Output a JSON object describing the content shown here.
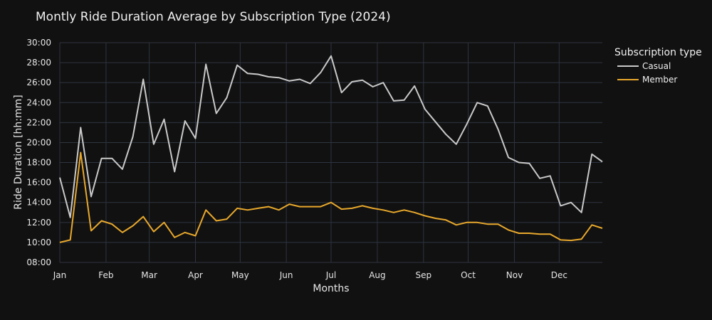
{
  "chart_data": {
    "type": "line",
    "title": "Montly Ride Duration Average by Subscription Type (2024)",
    "xlabel": "Months",
    "ylabel": "Ride Duration [hh:mm]",
    "x_ticks": [
      "Jan",
      "Feb",
      "Mar",
      "Apr",
      "May",
      "Jun",
      "Jul",
      "Aug",
      "Sep",
      "Oct",
      "Nov",
      "Dec"
    ],
    "y_ticks": [
      "08:00",
      "10:00",
      "12:00",
      "14:00",
      "16:00",
      "18:00",
      "20:00",
      "22:00",
      "24:00",
      "26:00",
      "28:00",
      "30:00"
    ],
    "ylim_minutes": [
      480,
      1800
    ],
    "xlim_weeks": [
      0,
      52
    ],
    "grid": true,
    "legend": {
      "title": "Subscription type",
      "placement": "right"
    },
    "x": [
      0,
      1,
      2,
      3,
      4,
      5,
      6,
      7,
      8,
      9,
      10,
      11,
      12,
      13,
      14,
      15,
      16,
      17,
      18,
      19,
      20,
      21,
      22,
      23,
      24,
      25,
      26,
      27,
      28,
      29,
      30,
      31,
      32,
      33,
      34,
      35,
      36,
      37,
      38,
      39,
      40,
      41,
      42,
      43,
      44,
      45,
      46,
      47,
      48,
      49,
      50,
      51,
      52
    ],
    "series": [
      {
        "name": "Casual",
        "color": "#c9c9c9",
        "values": [
          990,
          750,
          1290,
          875,
          1105,
          1105,
          1040,
          1235,
          1580,
          1190,
          1340,
          1025,
          1330,
          1225,
          1670,
          1375,
          1470,
          1665,
          1615,
          1610,
          1595,
          1590,
          1570,
          1580,
          1555,
          1620,
          1720,
          1500,
          1565,
          1575,
          1535,
          1560,
          1450,
          1455,
          1540,
          1400,
          1325,
          1250,
          1190,
          1310,
          1440,
          1420,
          1280,
          1110,
          1080,
          1075,
          985,
          1000,
          820,
          840,
          780,
          1130,
          1085
        ]
      },
      {
        "name": "Member",
        "color": "#e8a82c",
        "values": [
          600,
          615,
          1140,
          670,
          730,
          710,
          660,
          700,
          755,
          665,
          720,
          630,
          660,
          640,
          795,
          730,
          740,
          805,
          795,
          805,
          815,
          795,
          830,
          815,
          815,
          815,
          840,
          800,
          805,
          820,
          805,
          795,
          780,
          795,
          780,
          760,
          745,
          735,
          705,
          720,
          720,
          710,
          710,
          675,
          655,
          655,
          650,
          650,
          615,
          612,
          620,
          705,
          685
        ]
      }
    ]
  }
}
